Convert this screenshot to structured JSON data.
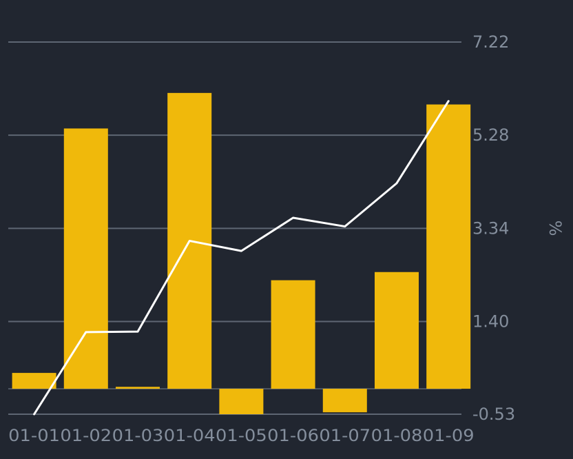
{
  "chart_data": {
    "type": "bar",
    "title": "",
    "xlabel": "",
    "ylabel": "%",
    "categories": [
      "01-01",
      "01-02",
      "01-03",
      "01-04",
      "01-05",
      "01-06",
      "01-07",
      "01-08",
      "01-09"
    ],
    "series": [
      {
        "type": "bar",
        "values": [
          0.33,
          5.42,
          0.04,
          6.16,
          -0.53,
          2.26,
          -0.49,
          2.43,
          5.92
        ]
      },
      {
        "type": "line",
        "values": [
          -0.53,
          1.18,
          1.19,
          3.08,
          2.87,
          3.56,
          3.38,
          4.28,
          5.99
        ]
      }
    ],
    "y_ticks": [
      "7.22",
      "5.28",
      "3.34",
      "1.40",
      "-0.53"
    ],
    "ylim": [
      -0.53,
      7.22
    ],
    "y_axis_position": "right",
    "grid": true,
    "legend": "none"
  },
  "colors": {
    "background": "#212630",
    "bar": "#F0B90B",
    "line": "#FFFFFF",
    "grid": "#5E6673",
    "tick_text": "#848E9C"
  }
}
